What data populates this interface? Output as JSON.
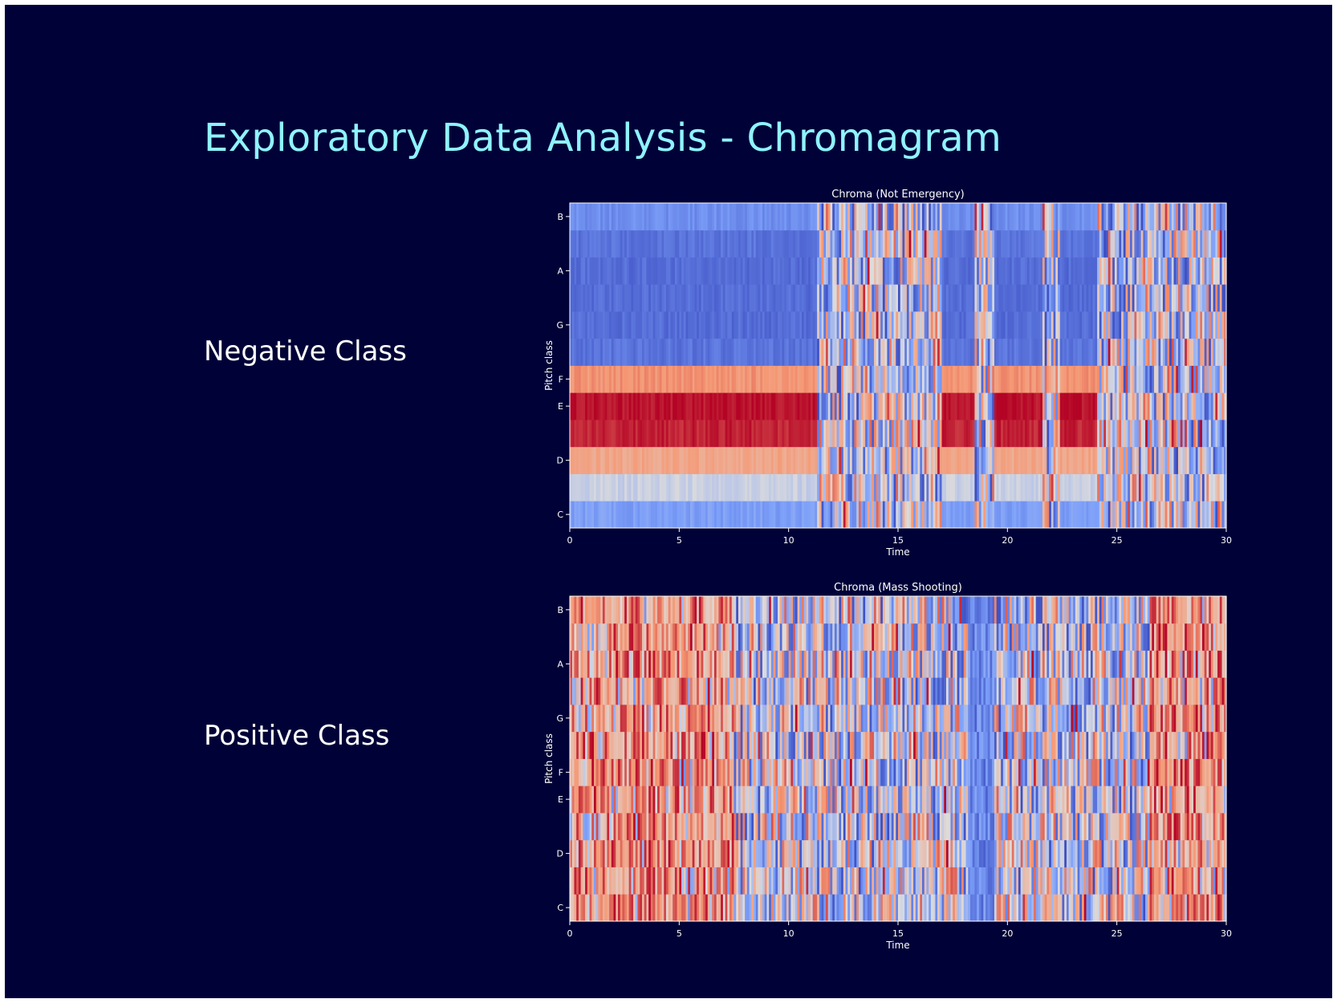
{
  "slide": {
    "title": "Exploratory Data Analysis - Chromagram",
    "negative_label": "Negative Class",
    "positive_label": "Positive Class",
    "background_color": "#000237",
    "title_color": "#8ff3ff"
  },
  "chart_data": [
    {
      "type": "heatmap",
      "title": "Chroma (Not Emergency)",
      "xlabel": "Time",
      "ylabel": "Pitch class",
      "xlim": [
        0,
        30
      ],
      "xticks": [
        "0",
        "5",
        "10",
        "15",
        "20",
        "25",
        "30"
      ],
      "yticks": [
        "C",
        "D",
        "E",
        "F",
        "G",
        "A",
        "B"
      ],
      "rows": [
        "C",
        "C#",
        "D",
        "D#",
        "E",
        "F",
        "F#",
        "G",
        "G#",
        "A",
        "A#",
        "B"
      ],
      "colormap": "coolwarm",
      "value_range": [
        0,
        1
      ],
      "grid": false,
      "legend": "none",
      "segments": [
        {
          "start": 0,
          "end": 11.3,
          "mode": "steady",
          "profile": [
            0.25,
            0.45,
            0.7,
            0.95,
            0.98,
            0.75,
            0.12,
            0.1,
            0.1,
            0.1,
            0.12,
            0.2
          ]
        },
        {
          "start": 11.3,
          "end": 17.0,
          "mode": "noisy"
        },
        {
          "start": 17.0,
          "end": 18.5,
          "mode": "steady",
          "profile": [
            0.25,
            0.45,
            0.7,
            0.95,
            0.98,
            0.75,
            0.12,
            0.1,
            0.1,
            0.1,
            0.12,
            0.2
          ]
        },
        {
          "start": 18.5,
          "end": 19.4,
          "mode": "noisy"
        },
        {
          "start": 19.4,
          "end": 21.6,
          "mode": "steady",
          "profile": [
            0.25,
            0.45,
            0.7,
            0.95,
            0.98,
            0.75,
            0.12,
            0.1,
            0.1,
            0.1,
            0.12,
            0.2
          ]
        },
        {
          "start": 21.6,
          "end": 22.4,
          "mode": "noisy"
        },
        {
          "start": 22.4,
          "end": 24.1,
          "mode": "steady",
          "profile": [
            0.25,
            0.45,
            0.7,
            0.95,
            0.98,
            0.75,
            0.12,
            0.1,
            0.1,
            0.1,
            0.12,
            0.2
          ]
        },
        {
          "start": 24.1,
          "end": 30,
          "mode": "noisy"
        }
      ]
    },
    {
      "type": "heatmap",
      "title": "Chroma (Mass Shooting)",
      "xlabel": "Time",
      "ylabel": "Pitch class",
      "xlim": [
        0,
        30
      ],
      "xticks": [
        "0",
        "5",
        "10",
        "15",
        "20",
        "25",
        "30"
      ],
      "yticks": [
        "C",
        "D",
        "E",
        "F",
        "G",
        "A",
        "B"
      ],
      "rows": [
        "C",
        "C#",
        "D",
        "D#",
        "E",
        "F",
        "F#",
        "G",
        "G#",
        "A",
        "A#",
        "B"
      ],
      "colormap": "coolwarm",
      "value_range": [
        0,
        1
      ],
      "grid": false,
      "legend": "none",
      "segments": [
        {
          "start": 0,
          "end": 7.5,
          "mode": "warm"
        },
        {
          "start": 7.5,
          "end": 18.2,
          "mode": "noisy"
        },
        {
          "start": 18.2,
          "end": 19.4,
          "mode": "cool"
        },
        {
          "start": 19.4,
          "end": 26.5,
          "mode": "noisy"
        },
        {
          "start": 26.5,
          "end": 30,
          "mode": "warm"
        }
      ]
    }
  ]
}
